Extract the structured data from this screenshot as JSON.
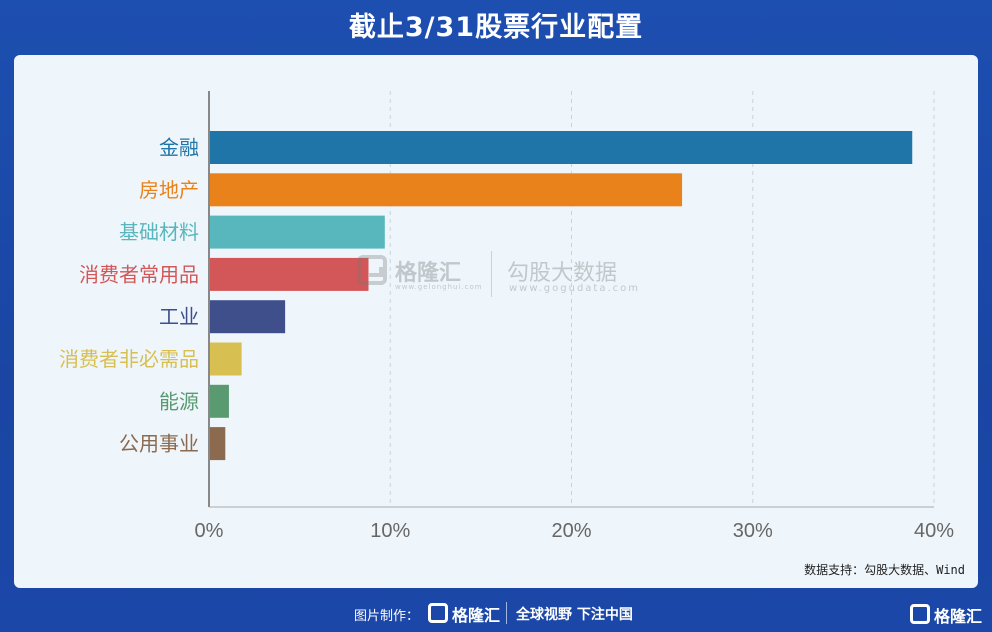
{
  "title": "截止3/31股票行业配置",
  "source": "数据支持：勾股大数据、Wind",
  "watermark": {
    "name1": "格隆汇",
    "url1": "www.gelonghui.com",
    "name2": "勾股大数据",
    "url2": "www.gogudata.com"
  },
  "footer": {
    "made_by": "图片制作：",
    "brand": "格隆汇",
    "slogan": "全球视野 下注中国",
    "corner_brand": "格隆汇"
  },
  "chart_data": {
    "type": "bar",
    "orientation": "horizontal",
    "categories": [
      "金融",
      "房地产",
      "基础材料",
      "消费者常用品",
      "工业",
      "消费者非必需品",
      "能源",
      "公用事业"
    ],
    "values": [
      38.8,
      26.1,
      9.7,
      8.8,
      4.2,
      1.8,
      1.1,
      0.9
    ],
    "colors": [
      "#1f74a8",
      "#e9821a",
      "#58b7bd",
      "#d35758",
      "#3f4f8c",
      "#d8bf52",
      "#5a9a70",
      "#8b6a4f"
    ],
    "xlim": [
      0,
      40
    ],
    "xticks": [
      "0%",
      "10%",
      "20%",
      "30%",
      "40%"
    ],
    "grid": "vertical-dashed"
  }
}
